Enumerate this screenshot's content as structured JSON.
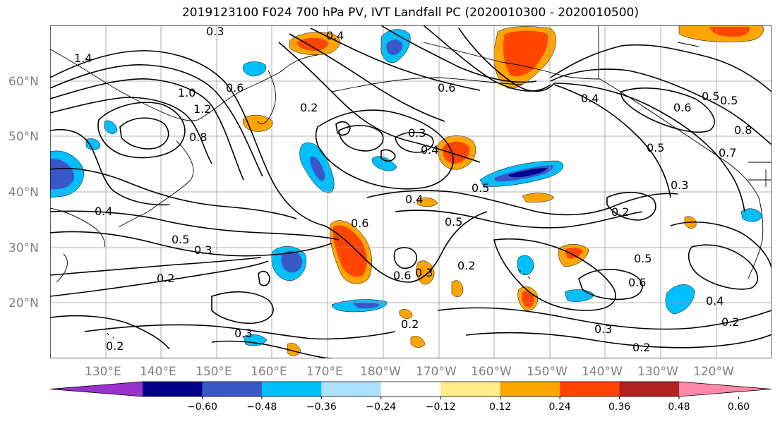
{
  "title": "2019123100 F024 700 hPa PV, IVT Landfall PC (2020010300 - 2020010500)",
  "lat_labels": [
    "60°N",
    "50°N",
    "40°N",
    "30°N",
    "20°N"
  ],
  "lon_labels": [
    "130°E",
    "140°E",
    "150°E",
    "160°E",
    "170°E",
    "180°W",
    "170°W",
    "160°W",
    "150°W",
    "140°W",
    "130°W",
    "120°W"
  ],
  "contour_labels": [
    "0.3",
    "0.4",
    "1.4",
    "1.0",
    "1.2",
    "0.8",
    "0.6",
    "0.2",
    "0.3",
    "0.4",
    "0.5",
    "0.6",
    "0.5",
    "0.3",
    "0.2",
    "0.4",
    "0.6",
    "0.5",
    "0.2",
    "0.3",
    "0.2",
    "0.6",
    "0.2",
    "0.4",
    "0.5",
    "0.6",
    "0.5",
    "0.8",
    "0.7",
    "0.3",
    "0.2",
    "0.4",
    "0.3",
    "0.2",
    "0.2",
    "0.6",
    "0.5",
    "0.5",
    "0.3",
    "0.4"
  ],
  "colorbar": {
    "ticks": [
      "−0.60",
      "−0.48",
      "−0.36",
      "−0.24",
      "−0.12",
      "0.12",
      "0.24",
      "0.36",
      "0.48",
      "0.60"
    ],
    "colors": [
      "#9932CC",
      "#00008B",
      "#3A57C8",
      "#00BFFF",
      "#ADE2FF",
      "#FFFFFF",
      "#FFEC8B",
      "#FFA500",
      "#FF4500",
      "#B22222",
      "#FF88AA"
    ]
  },
  "fill_colors": {
    "purple": "#9932CC",
    "navy": "#00008B",
    "blue": "#3A57C8",
    "sky": "#00BFFF",
    "light_blue": "#ADE2FF",
    "yellow": "#FFEC8B",
    "orange": "#FFA500",
    "red_orange": "#FF4500",
    "dark_red": "#B22222",
    "pink": "#FF88AA"
  }
}
